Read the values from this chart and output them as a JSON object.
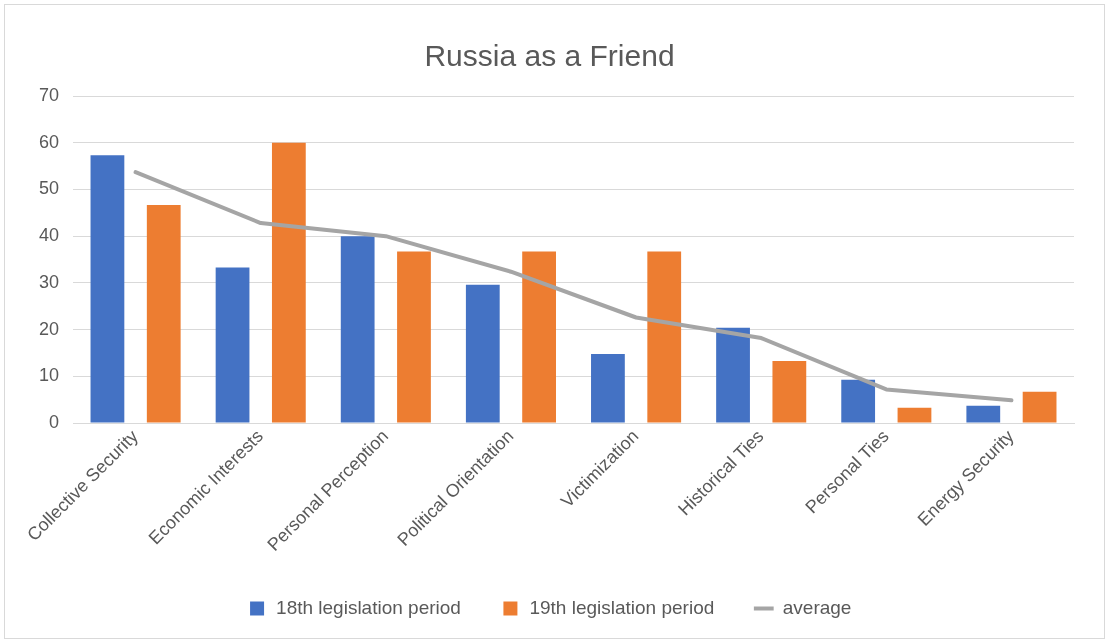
{
  "chart_data": {
    "type": "bar",
    "title": "Russia as a Friend",
    "categories": [
      "Collective Security",
      "Economic Interests",
      "Personal Perception",
      "Political Orientation",
      "Victimization",
      "Historical Ties",
      "Personal Ties",
      "Energy Security"
    ],
    "series": [
      {
        "name": "18th legislation period",
        "color": "#4472c4",
        "values": [
          57.3,
          33.3,
          40,
          29.6,
          14.8,
          20.4,
          9.3,
          3.7
        ]
      },
      {
        "name": "19th legislation period",
        "color": "#ed7d31",
        "values": [
          46.7,
          60,
          36.7,
          36.7,
          36.7,
          13.3,
          3.3,
          6.7
        ]
      },
      {
        "name": "average",
        "type": "line",
        "color": "#a5a5a5",
        "values": [
          53.7,
          42.8,
          40,
          32.4,
          22.6,
          18.2,
          7.2,
          4.9
        ]
      }
    ],
    "ylim": [
      0,
      70
    ],
    "yticks": [
      0,
      10,
      20,
      30,
      40,
      50,
      60,
      70
    ],
    "grid": "y",
    "legend": "bottom",
    "marker": "none",
    "line_style": "solid"
  }
}
